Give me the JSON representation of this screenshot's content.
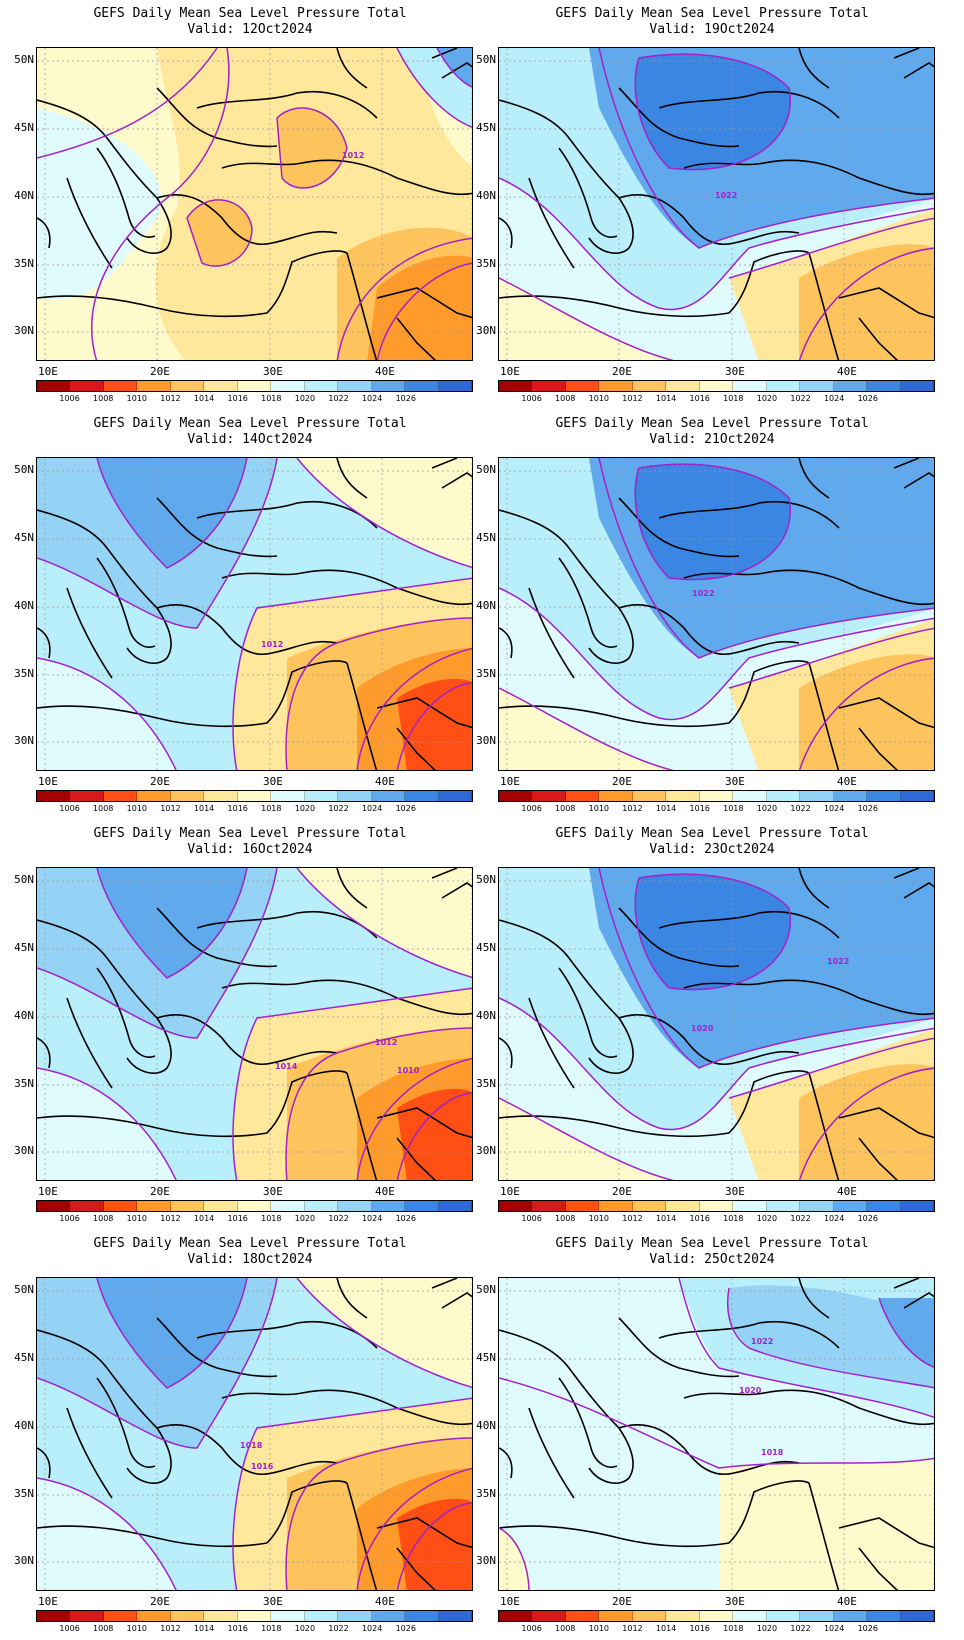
{
  "panels": [
    {
      "title": "GEFS Daily Mean Sea Level Pressure Total",
      "valid": "Valid: 12Oct2024",
      "mode": "warm",
      "contour_labels": [
        "1012"
      ]
    },
    {
      "title": "GEFS Daily Mean Sea Level Pressure Total",
      "valid": "Valid: 19Oct2024",
      "mode": "cool",
      "contour_labels": [
        "1022"
      ]
    },
    {
      "title": "GEFS Daily Mean Sea Level Pressure Total",
      "valid": "Valid: 14Oct2024",
      "mode": "mixed",
      "contour_labels": [
        "1012"
      ]
    },
    {
      "title": "GEFS Daily Mean Sea Level Pressure Total",
      "valid": "Valid: 21Oct2024",
      "mode": "cool",
      "contour_labels": [
        "1022"
      ]
    },
    {
      "title": "GEFS Daily Mean Sea Level Pressure Total",
      "valid": "Valid: 16Oct2024",
      "mode": "mixed",
      "contour_labels": [
        "1012",
        "1014",
        "1010"
      ]
    },
    {
      "title": "GEFS Daily Mean Sea Level Pressure Total",
      "valid": "Valid: 23Oct2024",
      "mode": "cool",
      "contour_labels": [
        "1022",
        "1020"
      ]
    },
    {
      "title": "GEFS Daily Mean Sea Level Pressure Total",
      "valid": "Valid: 18Oct2024",
      "mode": "mixed",
      "contour_labels": [
        "1018",
        "1016"
      ]
    },
    {
      "title": "GEFS Daily Mean Sea Level Pressure Total",
      "valid": "Valid: 25Oct2024",
      "mode": "light",
      "contour_labels": [
        "1022",
        "1020",
        "1018"
      ]
    }
  ],
  "y_ticks": [
    "50N",
    "45N",
    "40N",
    "35N",
    "30N"
  ],
  "x_ticks": [
    "10E",
    "20E",
    "30E",
    "40E"
  ],
  "colorbar": {
    "labels": [
      "1006",
      "1008",
      "1010",
      "1012",
      "1014",
      "1016",
      "1018",
      "1020",
      "1022",
      "1024",
      "1026"
    ],
    "colors": [
      "#a50000",
      "#d7191c",
      "#ff4f14",
      "#ff9a2b",
      "#fdc45e",
      "#ffe89b",
      "#fffacb",
      "#e0fbfd",
      "#b9eefb",
      "#94d3f5",
      "#5fa9ec",
      "#3c86e3",
      "#2f69d8"
    ]
  }
}
